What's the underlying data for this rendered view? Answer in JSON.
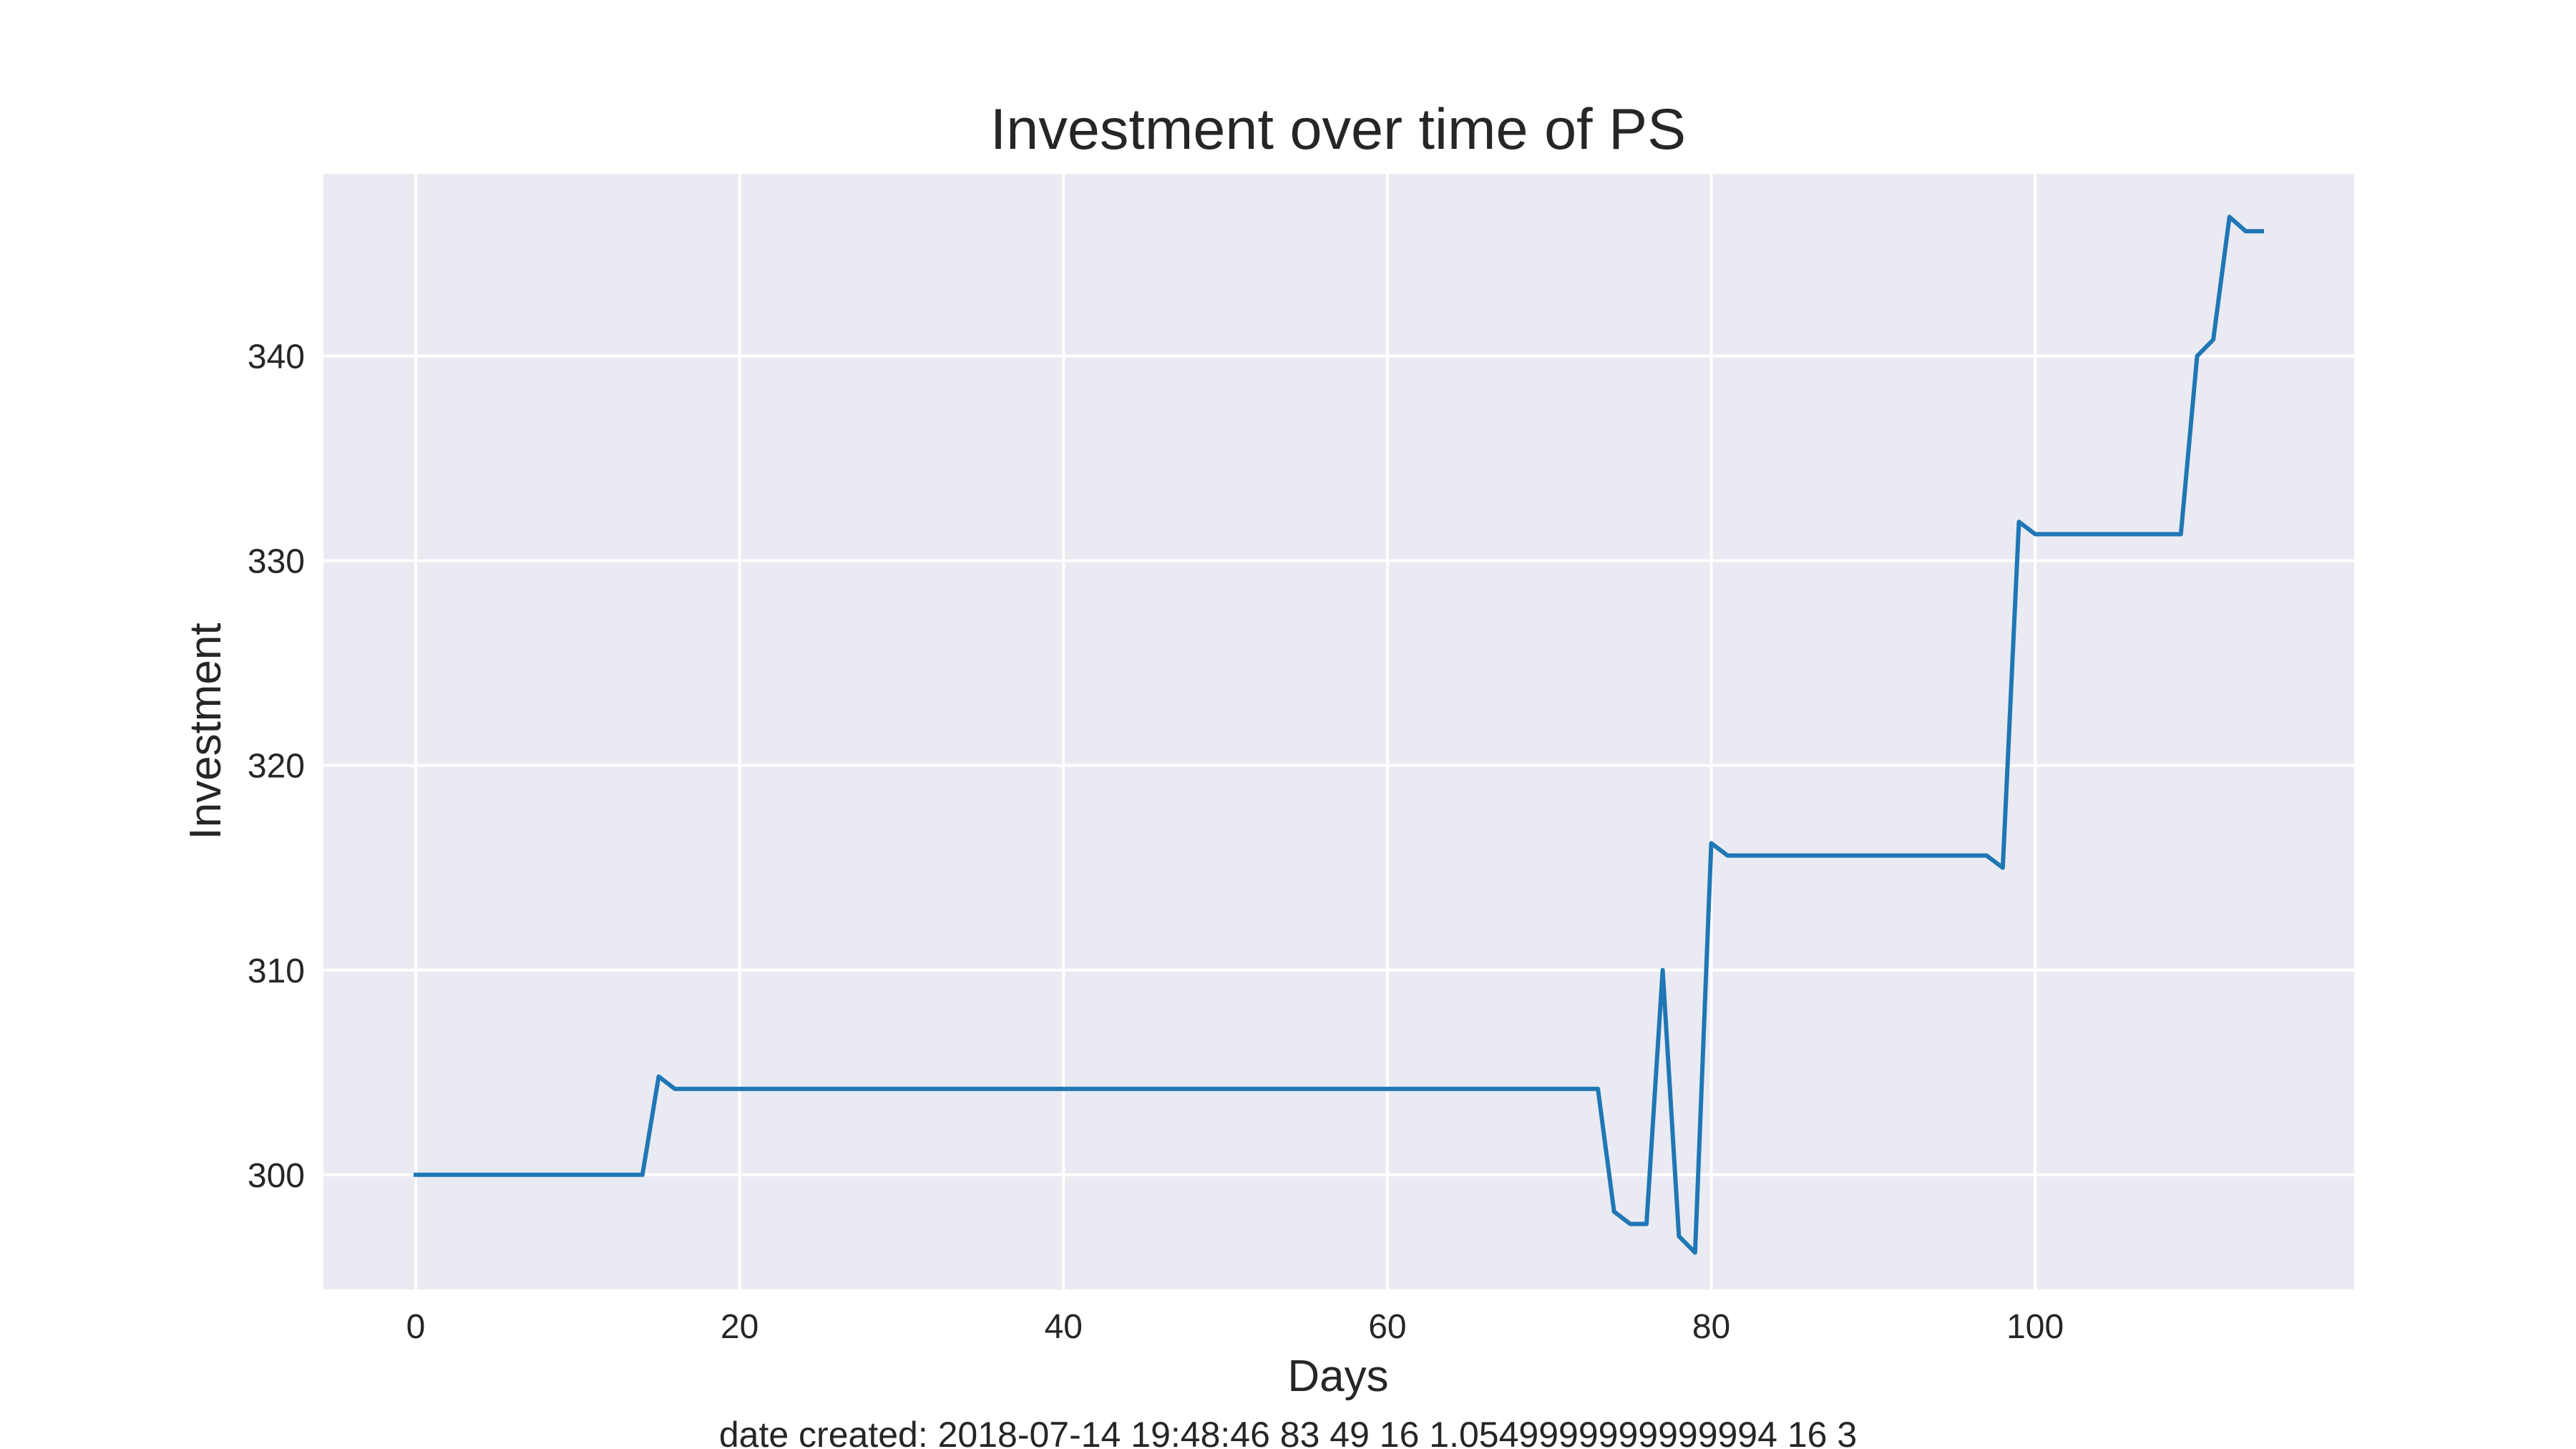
{
  "chart_data": {
    "type": "line",
    "title": "Investment over time of PS",
    "xlabel": "Days",
    "ylabel": "Investment",
    "xlim": [
      -5.7,
      119.7
    ],
    "ylim": [
      294.4,
      348.9
    ],
    "xticks": [
      0,
      20,
      40,
      60,
      80,
      100
    ],
    "yticks": [
      300,
      310,
      320,
      330,
      340
    ],
    "grid": true,
    "background": "#eaeaf2",
    "series": [
      {
        "color": "#1f77b4",
        "x": [
          0,
          14,
          15,
          16,
          73,
          74,
          75,
          76,
          77,
          78,
          79,
          80,
          81,
          97,
          98,
          99,
          100,
          109,
          110,
          111,
          112,
          113,
          114
        ],
        "y": [
          300.0,
          300.0,
          304.8,
          304.2,
          304.2,
          298.2,
          297.6,
          297.6,
          310.0,
          297.0,
          296.2,
          316.2,
          315.6,
          315.6,
          315.0,
          331.9,
          331.3,
          331.3,
          340.0,
          340.8,
          346.8,
          346.1,
          346.1
        ]
      }
    ]
  },
  "footer": {
    "text": "date created: 2018-07-14 19:48:46 83 49 16 1.0549999999999994 16 3"
  }
}
